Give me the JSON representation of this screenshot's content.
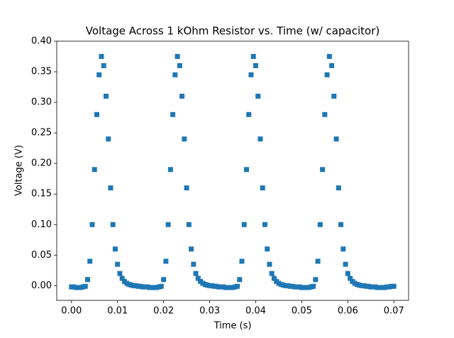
{
  "chart_data": {
    "type": "scatter",
    "title": "Voltage Across 1 kOhm Resistor vs. Time (w/ capacitor)",
    "x_label": "Time (s)",
    "y_label": "Voltage (V)",
    "color": "#1f77b4",
    "marker": "square",
    "xlim": [
      -0.0032,
      0.0732
    ],
    "ylim": [
      -0.024,
      0.4
    ],
    "xticks": [
      {
        "value": 0,
        "label": "0.00"
      },
      {
        "value": 0.01,
        "label": "0.01"
      },
      {
        "value": 0.02,
        "label": "0.02"
      },
      {
        "value": 0.03,
        "label": "0.03"
      },
      {
        "value": 0.04,
        "label": "0.04"
      },
      {
        "value": 0.05,
        "label": "0.05"
      },
      {
        "value": 0.06,
        "label": "0.06"
      },
      {
        "value": 0.07,
        "label": "0.07"
      }
    ],
    "yticks": [
      {
        "value": 0,
        "label": "0.00"
      },
      {
        "value": 0.05,
        "label": "0.05"
      },
      {
        "value": 0.1,
        "label": "0.10"
      },
      {
        "value": 0.15,
        "label": "0.15"
      },
      {
        "value": 0.2,
        "label": "0.20"
      },
      {
        "value": 0.25,
        "label": "0.25"
      },
      {
        "value": 0.3,
        "label": "0.30"
      },
      {
        "value": 0.35,
        "label": "0.35"
      },
      {
        "value": 0.4,
        "label": "0.40"
      }
    ],
    "x": [
      0,
      0.0005,
      0.001,
      0.0015,
      0.002,
      0.0025,
      0.003,
      0.0035,
      0.004,
      0.0045,
      0.005,
      0.0055,
      0.006,
      0.0065,
      0.007,
      0.0075,
      0.008,
      0.0085,
      0.009,
      0.0095,
      0.01,
      0.0105,
      0.011,
      0.0115,
      0.012,
      0.0125,
      0.013,
      0.0135,
      0.014,
      0.0145,
      0.015,
      0.0155,
      0.016,
      0.0165,
      0.017,
      0.0175,
      0.018,
      0.0185,
      0.019,
      0.0195,
      0.02,
      0.0205,
      0.021,
      0.0215,
      0.022,
      0.0225,
      0.023,
      0.0235,
      0.024,
      0.0245,
      0.025,
      0.0255,
      0.026,
      0.0265,
      0.027,
      0.0275,
      0.028,
      0.0285,
      0.029,
      0.0295,
      0.03,
      0.0305,
      0.031,
      0.0315,
      0.032,
      0.0325,
      0.033,
      0.0335,
      0.034,
      0.0345,
      0.035,
      0.0355,
      0.036,
      0.0365,
      0.037,
      0.0375,
      0.038,
      0.0385,
      0.039,
      0.0395,
      0.04,
      0.0405,
      0.041,
      0.0415,
      0.042,
      0.0425,
      0.043,
      0.0435,
      0.044,
      0.0445,
      0.045,
      0.0455,
      0.046,
      0.0465,
      0.047,
      0.0475,
      0.048,
      0.0485,
      0.049,
      0.0495,
      0.05,
      0.0505,
      0.051,
      0.0515,
      0.052,
      0.0525,
      0.053,
      0.0535,
      0.054,
      0.0545,
      0.055,
      0.0555,
      0.056,
      0.0565,
      0.057,
      0.0575,
      0.058,
      0.0585,
      0.059,
      0.0595,
      0.06,
      0.0605,
      0.061,
      0.0615,
      0.062,
      0.0625,
      0.063,
      0.0635,
      0.064,
      0.0645,
      0.065,
      0.0655,
      0.066,
      0.0665,
      0.067,
      0.0675,
      0.068,
      0.0685,
      0.069,
      0.0695,
      0.07
    ],
    "values": [
      -0.002,
      -0.002,
      -0.003,
      -0.003,
      -0.003,
      -0.002,
      -0.001,
      0.01,
      0.04,
      0.1,
      0.19,
      0.28,
      0.345,
      0.375,
      0.36,
      0.31,
      0.24,
      0.16,
      0.1,
      0.06,
      0.035,
      0.02,
      0.012,
      0.007,
      0.004,
      0.002,
      0.001,
      0,
      0,
      -0.001,
      -0.001,
      -0.002,
      -0.002,
      -0.002,
      -0.003,
      -0.003,
      -0.003,
      -0.003,
      -0.002,
      -0.001,
      0.01,
      0.04,
      0.1,
      0.19,
      0.28,
      0.345,
      0.375,
      0.36,
      0.31,
      0.24,
      0.16,
      0.1,
      0.06,
      0.035,
      0.02,
      0.012,
      0.007,
      0.004,
      0.002,
      0.001,
      0,
      0,
      -0.001,
      -0.001,
      -0.002,
      -0.002,
      -0.002,
      -0.003,
      -0.003,
      -0.003,
      -0.003,
      -0.002,
      -0.001,
      0.01,
      0.04,
      0.1,
      0.19,
      0.28,
      0.345,
      0.375,
      0.36,
      0.31,
      0.24,
      0.16,
      0.1,
      0.06,
      0.035,
      0.02,
      0.012,
      0.007,
      0.004,
      0.002,
      0.001,
      0,
      0,
      -0.001,
      -0.001,
      -0.002,
      -0.002,
      -0.002,
      -0.003,
      -0.003,
      -0.003,
      -0.003,
      -0.002,
      -0.001,
      0.01,
      0.04,
      0.1,
      0.19,
      0.28,
      0.345,
      0.375,
      0.36,
      0.31,
      0.24,
      0.16,
      0.1,
      0.06,
      0.035,
      0.02,
      0.012,
      0.007,
      0.004,
      0.002,
      0.001,
      0,
      0,
      -0.001,
      -0.001,
      -0.002,
      -0.002,
      -0.002,
      -0.003,
      -0.003,
      -0.003,
      -0.003,
      -0.002,
      -0.002,
      -0.001,
      -0.001
    ]
  }
}
